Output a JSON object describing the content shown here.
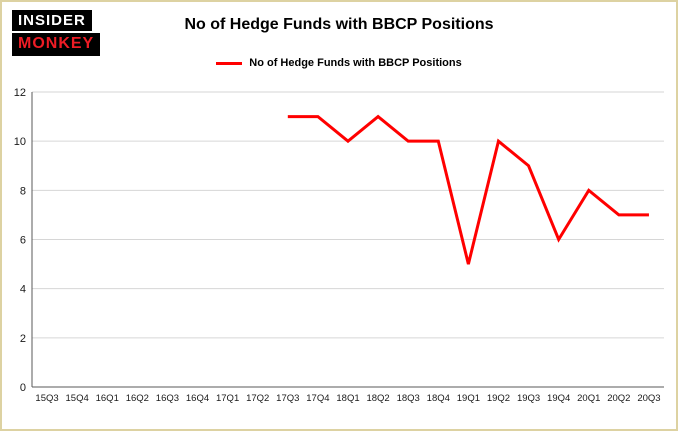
{
  "logo": {
    "line1": "INSIDER",
    "line2": "MONKEY"
  },
  "title": "No of Hedge Funds with BBCP Positions",
  "legend": {
    "label": "No of Hedge Funds with BBCP Positions",
    "color": "#ff0000"
  },
  "colors": {
    "line": "#ff0000",
    "grid": "#d6d6d6",
    "axis": "#595959",
    "text": "#1a1a1a",
    "border": "#ddd2a2"
  },
  "chart_data": {
    "type": "line",
    "title": "No of Hedge Funds with BBCP Positions",
    "categories": [
      "15Q3",
      "15Q4",
      "16Q1",
      "16Q2",
      "16Q3",
      "16Q4",
      "17Q1",
      "17Q2",
      "17Q3",
      "17Q4",
      "18Q1",
      "18Q2",
      "18Q3",
      "18Q4",
      "19Q1",
      "19Q2",
      "19Q3",
      "19Q4",
      "20Q1",
      "20Q2",
      "20Q3"
    ],
    "series": [
      {
        "name": "No of Hedge Funds with BBCP Positions",
        "color": "#ff0000",
        "values": [
          null,
          null,
          null,
          null,
          null,
          null,
          null,
          null,
          11,
          11,
          10,
          11,
          10,
          10,
          5,
          10,
          9,
          6,
          8,
          7,
          7
        ]
      }
    ],
    "xlabel": "",
    "ylabel": "",
    "ylim": [
      0,
      12
    ],
    "yticks": [
      0,
      2,
      4,
      6,
      8,
      10,
      12
    ],
    "grid": true,
    "legend_position": "top"
  }
}
